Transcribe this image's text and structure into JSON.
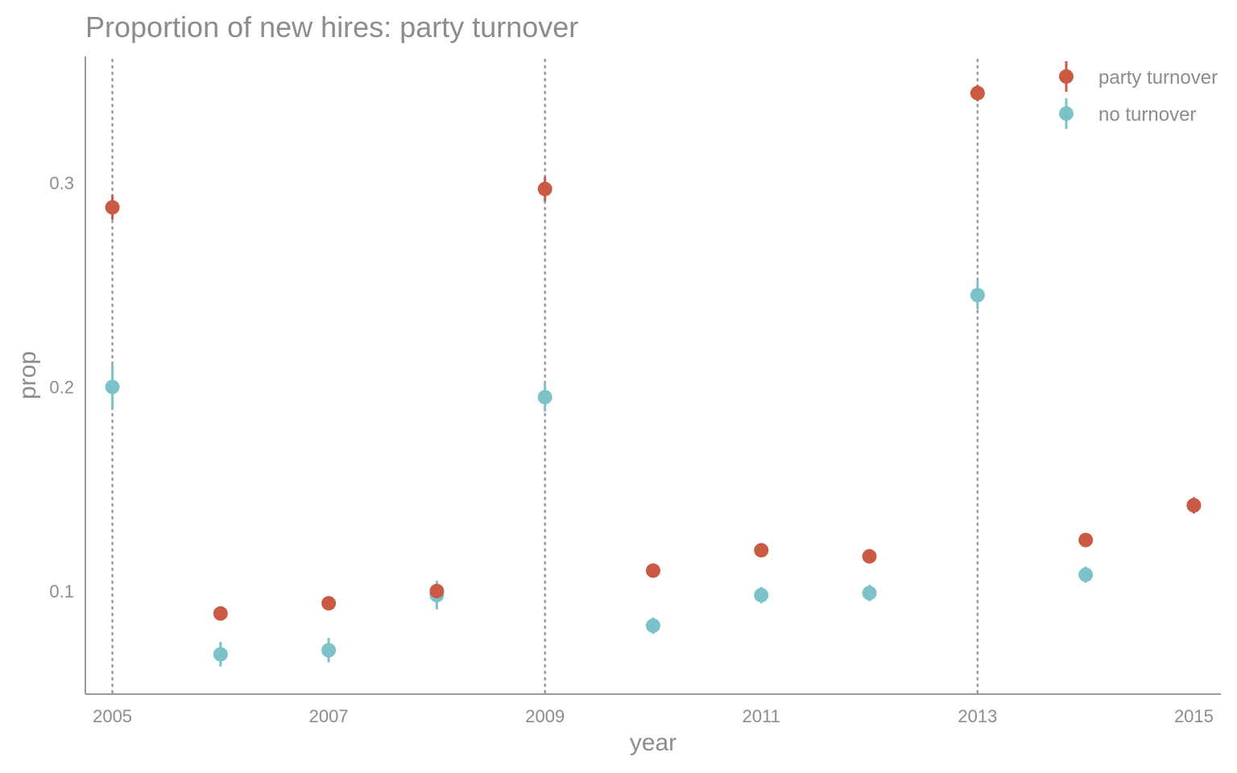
{
  "chart_data": {
    "type": "scatter",
    "title": "Proportion of new hires: party turnover",
    "xlabel": "year",
    "ylabel": "prop",
    "xlim": [
      2004.75,
      2015.25
    ],
    "ylim": [
      0.0495,
      0.362
    ],
    "x_ticks": [
      2005,
      2007,
      2009,
      2011,
      2013,
      2015
    ],
    "x_tick_labels": [
      "2005",
      "2007",
      "2009",
      "2011",
      "2013",
      "2015"
    ],
    "y_ticks": [
      0.1,
      0.2,
      0.3
    ],
    "y_tick_labels": [
      "0.1",
      "0.2",
      "0.3"
    ],
    "grid": false,
    "reference_lines_x": [
      2005,
      2009,
      2013
    ],
    "legend_position": "top-right",
    "series": [
      {
        "name": "party turnover",
        "color": "#cb5a44",
        "x": [
          2005,
          2006,
          2007,
          2008,
          2009,
          2010,
          2011,
          2012,
          2013,
          2014,
          2015
        ],
        "y": [
          0.288,
          0.089,
          0.094,
          0.1,
          0.297,
          0.11,
          0.12,
          0.117,
          0.344,
          0.125,
          0.142
        ],
        "err": [
          0.006,
          0.003,
          0.003,
          0.003,
          0.006,
          0.003,
          0.003,
          0.003,
          0.004,
          0.003,
          0.004
        ]
      },
      {
        "name": "no turnover",
        "color": "#7cc3c9",
        "x": [
          2005,
          2006,
          2007,
          2008,
          2009,
          2010,
          2011,
          2012,
          2013,
          2014,
          2015
        ],
        "y": [
          0.2,
          0.069,
          0.071,
          0.098,
          0.195,
          0.083,
          0.098,
          0.099,
          0.245,
          0.108,
          0.142
        ],
        "err": [
          0.011,
          0.006,
          0.006,
          0.007,
          0.007,
          0.004,
          0.004,
          0.004,
          0.007,
          0.004,
          0.004
        ]
      }
    ]
  }
}
